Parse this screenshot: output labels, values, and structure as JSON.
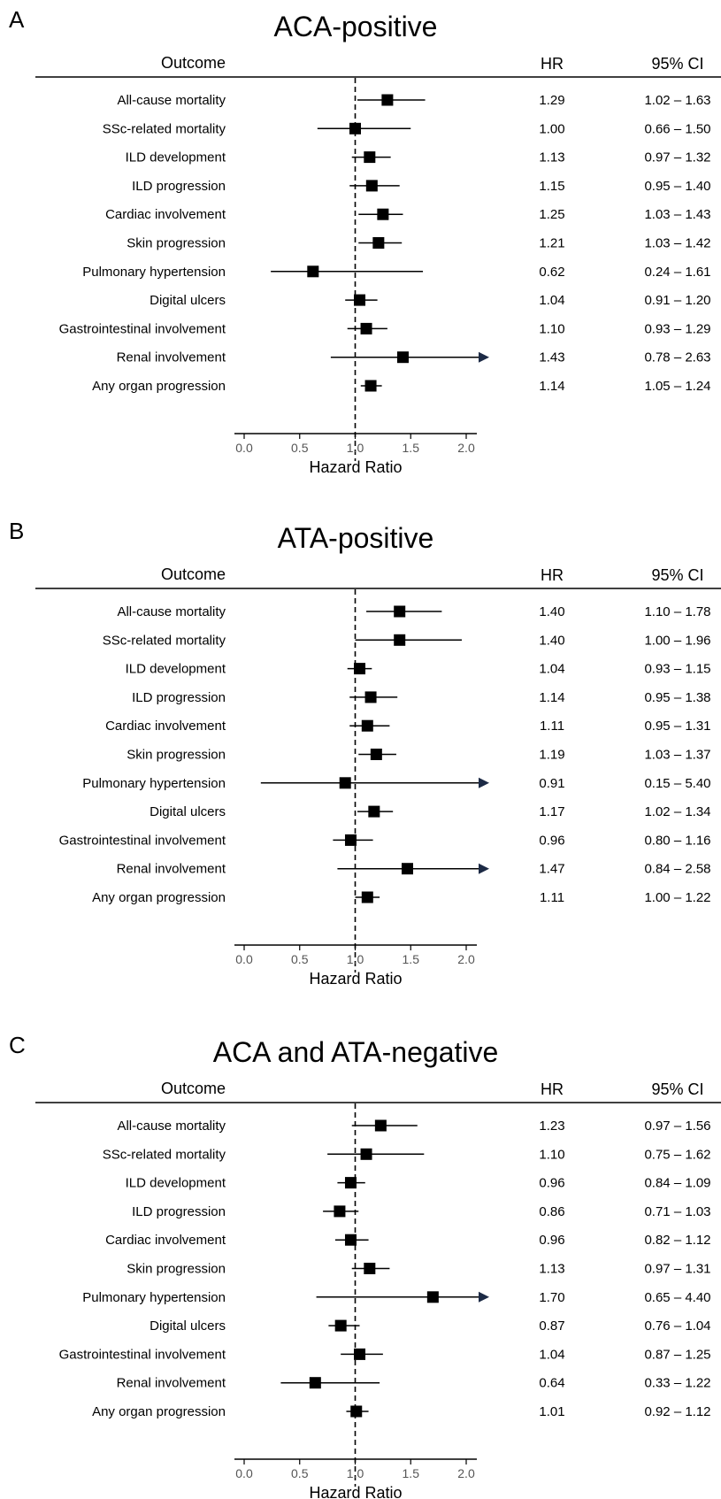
{
  "headers": {
    "outcome": "Outcome",
    "hr": "HR",
    "ci": "95% CI"
  },
  "axis": {
    "label": "Hazard Ratio",
    "ticks": [
      "0.0",
      "0.5",
      "1.0",
      "1.5",
      "2.0"
    ],
    "range": [
      0,
      2.0
    ],
    "reference_line": 1.0
  },
  "colors": {
    "arrow": "#1c2a45",
    "marker": "#000000",
    "line": "#000000"
  },
  "chart_data": [
    {
      "type": "forest",
      "panel": "A",
      "title": "ACA-positive",
      "xlabel": "Hazard Ratio",
      "xlim": [
        0,
        2.0
      ],
      "rows": [
        {
          "outcome": "All-cause mortality",
          "hr": 1.29,
          "lo": 1.02,
          "hi": 1.63,
          "hr_text": "1.29",
          "ci_text": "1.02 – 1.63"
        },
        {
          "outcome": "SSc-related mortality",
          "hr": 1.0,
          "lo": 0.66,
          "hi": 1.5,
          "hr_text": "1.00",
          "ci_text": "0.66 – 1.50"
        },
        {
          "outcome": "ILD development",
          "hr": 1.13,
          "lo": 0.97,
          "hi": 1.32,
          "hr_text": "1.13",
          "ci_text": "0.97 – 1.32"
        },
        {
          "outcome": "ILD progression",
          "hr": 1.15,
          "lo": 0.95,
          "hi": 1.4,
          "hr_text": "1.15",
          "ci_text": "0.95 – 1.40"
        },
        {
          "outcome": "Cardiac involvement",
          "hr": 1.25,
          "lo": 1.03,
          "hi": 1.43,
          "hr_text": "1.25",
          "ci_text": "1.03 – 1.43"
        },
        {
          "outcome": "Skin progression",
          "hr": 1.21,
          "lo": 1.03,
          "hi": 1.42,
          "hr_text": "1.21",
          "ci_text": "1.03 – 1.42"
        },
        {
          "outcome": "Pulmonary hypertension",
          "hr": 0.62,
          "lo": 0.24,
          "hi": 1.61,
          "hr_text": "0.62",
          "ci_text": "0.24 – 1.61"
        },
        {
          "outcome": "Digital ulcers",
          "hr": 1.04,
          "lo": 0.91,
          "hi": 1.2,
          "hr_text": "1.04",
          "ci_text": "0.91 – 1.20"
        },
        {
          "outcome": "Gastrointestinal involvement",
          "hr": 1.1,
          "lo": 0.93,
          "hi": 1.29,
          "hr_text": "1.10",
          "ci_text": "0.93 – 1.29"
        },
        {
          "outcome": "Renal involvement",
          "hr": 1.43,
          "lo": 0.78,
          "hi": 2.63,
          "hr_text": "1.43",
          "ci_text": "0.78 – 2.63"
        },
        {
          "outcome": "Any organ progression",
          "hr": 1.14,
          "lo": 1.05,
          "hi": 1.24,
          "hr_text": "1.14",
          "ci_text": "1.05 – 1.24"
        }
      ]
    },
    {
      "type": "forest",
      "panel": "B",
      "title": "ATA-positive",
      "xlabel": "Hazard Ratio",
      "xlim": [
        0,
        2.0
      ],
      "rows": [
        {
          "outcome": "All-cause mortality",
          "hr": 1.4,
          "lo": 1.1,
          "hi": 1.78,
          "hr_text": "1.40",
          "ci_text": "1.10 – 1.78"
        },
        {
          "outcome": "SSc-related mortality",
          "hr": 1.4,
          "lo": 1.0,
          "hi": 1.96,
          "hr_text": "1.40",
          "ci_text": "1.00 – 1.96"
        },
        {
          "outcome": "ILD development",
          "hr": 1.04,
          "lo": 0.93,
          "hi": 1.15,
          "hr_text": "1.04",
          "ci_text": "0.93 – 1.15"
        },
        {
          "outcome": "ILD progression",
          "hr": 1.14,
          "lo": 0.95,
          "hi": 1.38,
          "hr_text": "1.14",
          "ci_text": "0.95 – 1.38"
        },
        {
          "outcome": "Cardiac involvement",
          "hr": 1.11,
          "lo": 0.95,
          "hi": 1.31,
          "hr_text": "1.11",
          "ci_text": "0.95 – 1.31"
        },
        {
          "outcome": "Skin progression",
          "hr": 1.19,
          "lo": 1.03,
          "hi": 1.37,
          "hr_text": "1.19",
          "ci_text": "1.03 – 1.37"
        },
        {
          "outcome": "Pulmonary hypertension",
          "hr": 0.91,
          "lo": 0.15,
          "hi": 5.4,
          "hr_text": "0.91",
          "ci_text": "0.15 – 5.40"
        },
        {
          "outcome": "Digital ulcers",
          "hr": 1.17,
          "lo": 1.02,
          "hi": 1.34,
          "hr_text": "1.17",
          "ci_text": "1.02 – 1.34"
        },
        {
          "outcome": "Gastrointestinal involvement",
          "hr": 0.96,
          "lo": 0.8,
          "hi": 1.16,
          "hr_text": "0.96",
          "ci_text": "0.80 – 1.16"
        },
        {
          "outcome": "Renal involvement",
          "hr": 1.47,
          "lo": 0.84,
          "hi": 2.58,
          "hr_text": "1.47",
          "ci_text": "0.84 – 2.58"
        },
        {
          "outcome": "Any organ progression",
          "hr": 1.11,
          "lo": 1.0,
          "hi": 1.22,
          "hr_text": "1.11",
          "ci_text": "1.00 – 1.22"
        }
      ]
    },
    {
      "type": "forest",
      "panel": "C",
      "title": "ACA and ATA-negative",
      "xlabel": "Hazard Ratio",
      "xlim": [
        0,
        2.0
      ],
      "rows": [
        {
          "outcome": "All-cause mortality",
          "hr": 1.23,
          "lo": 0.97,
          "hi": 1.56,
          "hr_text": "1.23",
          "ci_text": "0.97 – 1.56"
        },
        {
          "outcome": "SSc-related mortality",
          "hr": 1.1,
          "lo": 0.75,
          "hi": 1.62,
          "hr_text": "1.10",
          "ci_text": "0.75 – 1.62"
        },
        {
          "outcome": "ILD development",
          "hr": 0.96,
          "lo": 0.84,
          "hi": 1.09,
          "hr_text": "0.96",
          "ci_text": "0.84 – 1.09"
        },
        {
          "outcome": "ILD progression",
          "hr": 0.86,
          "lo": 0.71,
          "hi": 1.03,
          "hr_text": "0.86",
          "ci_text": "0.71 – 1.03"
        },
        {
          "outcome": "Cardiac involvement",
          "hr": 0.96,
          "lo": 0.82,
          "hi": 1.12,
          "hr_text": "0.96",
          "ci_text": "0.82 – 1.12"
        },
        {
          "outcome": "Skin progression",
          "hr": 1.13,
          "lo": 0.97,
          "hi": 1.31,
          "hr_text": "1.13",
          "ci_text": "0.97 – 1.31"
        },
        {
          "outcome": "Pulmonary hypertension",
          "hr": 1.7,
          "lo": 0.65,
          "hi": 4.4,
          "hr_text": "1.70",
          "ci_text": "0.65 – 4.40"
        },
        {
          "outcome": "Digital ulcers",
          "hr": 0.87,
          "lo": 0.76,
          "hi": 1.04,
          "hr_text": "0.87",
          "ci_text": "0.76 – 1.04"
        },
        {
          "outcome": "Gastrointestinal involvement",
          "hr": 1.04,
          "lo": 0.87,
          "hi": 1.25,
          "hr_text": "1.04",
          "ci_text": "0.87 – 1.25"
        },
        {
          "outcome": "Renal involvement",
          "hr": 0.64,
          "lo": 0.33,
          "hi": 1.22,
          "hr_text": "0.64",
          "ci_text": "0.33 – 1.22"
        },
        {
          "outcome": "Any organ progression",
          "hr": 1.01,
          "lo": 0.92,
          "hi": 1.12,
          "hr_text": "1.01",
          "ci_text": "0.92 – 1.12"
        }
      ]
    }
  ]
}
